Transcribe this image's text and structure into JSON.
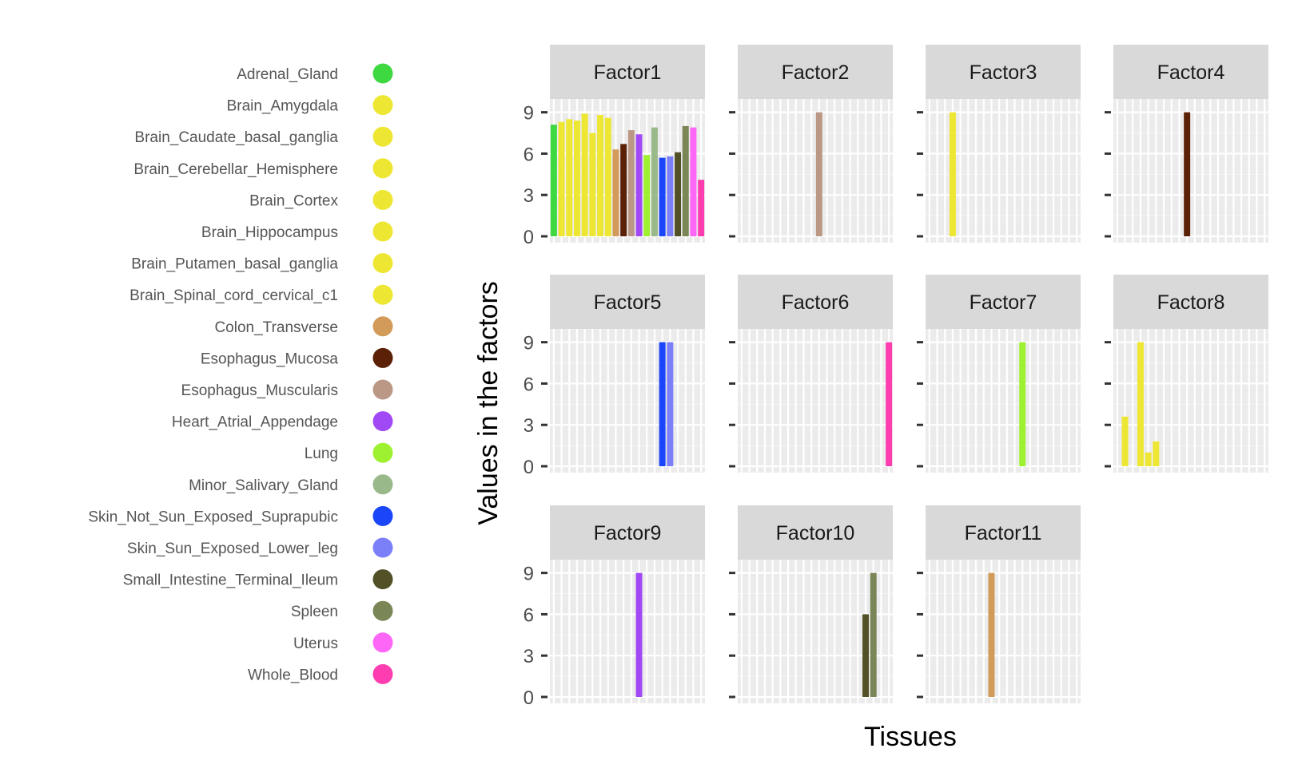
{
  "chart_data": {
    "type": "bar",
    "xlabel": "Tissues",
    "ylabel": "Values in the factors",
    "y_ticks": [
      "0",
      "3",
      "6",
      "9"
    ],
    "ylim": [
      0,
      9.5
    ],
    "grid": true,
    "legend_position": "left",
    "categories": [
      "Adrenal_Gland",
      "Brain_Amygdala",
      "Brain_Caudate_basal_ganglia",
      "Brain_Cerebellar_Hemisphere",
      "Brain_Cortex",
      "Brain_Hippocampus",
      "Brain_Putamen_basal_ganglia",
      "Brain_Spinal_cord_cervical_c1",
      "Colon_Transverse",
      "Esophagus_Mucosa",
      "Esophagus_Muscularis",
      "Heart_Atrial_Appendage",
      "Lung",
      "Minor_Salivary_Gland",
      "Skin_Not_Sun_Exposed_Suprapubic",
      "Skin_Sun_Exposed_Lower_leg",
      "Small_Intestine_Terminal_Ileum",
      "Spleen",
      "Uterus",
      "Whole_Blood"
    ],
    "colors": [
      "#3ed841",
      "#ede733",
      "#ede733",
      "#ede733",
      "#ede733",
      "#ede733",
      "#ede733",
      "#ede733",
      "#d29b5a",
      "#5b2107",
      "#bb9886",
      "#a249f6",
      "#9ef131",
      "#9ab98a",
      "#1b45f9",
      "#7b7ff8",
      "#515027",
      "#7a8655",
      "#fe66f8",
      "#fe3db1"
    ],
    "bar_samples_per_tissue": 1,
    "panels": [
      {
        "name": "Factor1",
        "values": [
          8.1,
          8.3,
          8.5,
          8.4,
          8.9,
          7.5,
          8.8,
          8.6,
          6.3,
          6.7,
          7.7,
          7.4,
          5.9,
          7.9,
          5.7,
          5.8,
          6.1,
          8.0,
          7.9,
          4.1
        ]
      },
      {
        "name": "Factor2",
        "values": [
          0,
          0,
          0,
          0,
          0,
          0,
          0,
          0,
          0,
          0,
          9.0,
          0,
          0,
          0,
          0,
          0,
          0,
          0,
          0,
          0
        ]
      },
      {
        "name": "Factor3",
        "values": [
          0,
          0,
          0,
          9.0,
          0,
          0,
          0,
          0,
          0,
          0,
          0,
          0,
          0,
          0,
          0,
          0,
          0,
          0,
          0,
          0
        ]
      },
      {
        "name": "Factor4",
        "values": [
          0,
          0,
          0,
          0,
          0,
          0,
          0,
          0,
          0,
          9.0,
          0,
          0,
          0,
          0,
          0,
          0,
          0,
          0,
          0,
          0
        ]
      },
      {
        "name": "Factor5",
        "values": [
          0,
          0,
          0,
          0,
          0,
          0,
          0,
          0,
          0,
          0,
          0,
          0,
          0,
          0,
          9.0,
          9.0,
          0,
          0,
          0,
          0
        ]
      },
      {
        "name": "Factor6",
        "values": [
          0,
          0,
          0,
          0,
          0,
          0,
          0,
          0,
          0,
          0,
          0,
          0,
          0,
          0,
          0,
          0,
          0,
          0,
          0,
          9.0
        ]
      },
      {
        "name": "Factor7",
        "values": [
          0,
          0,
          0,
          0,
          0,
          0,
          0,
          0,
          0,
          0,
          0,
          0,
          9.0,
          0,
          0,
          0,
          0,
          0,
          0,
          0
        ]
      },
      {
        "name": "Factor8",
        "values": [
          0,
          3.6,
          0,
          9.0,
          1.0,
          1.8,
          0,
          0,
          0,
          0,
          0,
          0,
          0,
          0,
          0,
          0,
          0,
          0,
          0,
          0
        ]
      },
      {
        "name": "Factor9",
        "values": [
          0,
          0,
          0,
          0,
          0,
          0,
          0,
          0,
          0,
          0,
          0,
          9.0,
          0,
          0,
          0,
          0,
          0,
          0,
          0,
          0
        ]
      },
      {
        "name": "Factor10",
        "values": [
          0,
          0,
          0,
          0,
          0,
          0,
          0,
          0,
          0,
          0,
          0,
          0,
          0,
          0,
          0,
          0,
          6.0,
          9.0,
          0,
          0
        ]
      },
      {
        "name": "Factor11",
        "values": [
          0,
          0,
          0,
          0,
          0,
          0,
          0,
          0,
          9.0,
          0,
          0,
          0,
          0,
          0,
          0,
          0,
          0,
          0,
          0,
          0
        ]
      }
    ]
  }
}
